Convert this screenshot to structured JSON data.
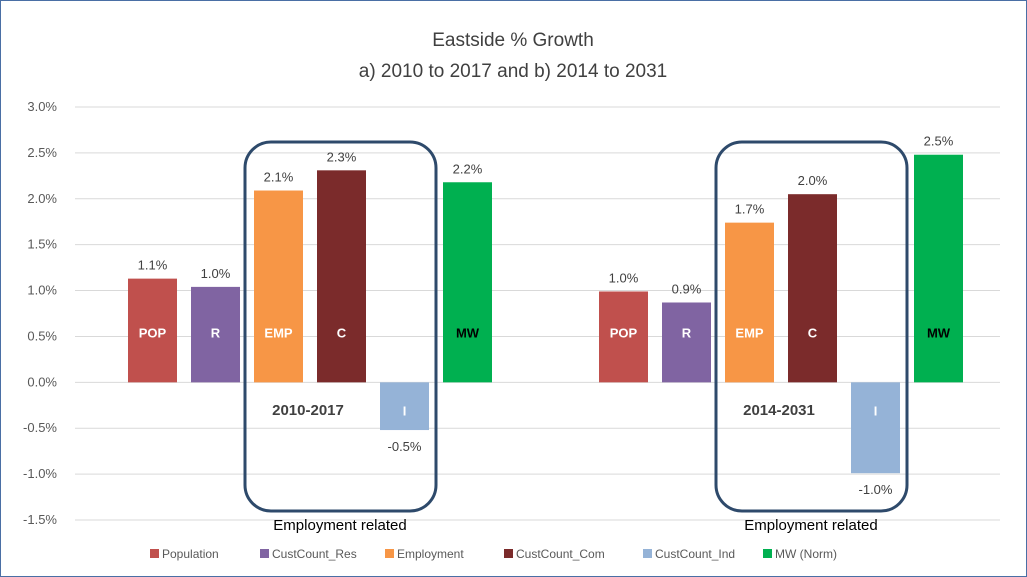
{
  "chart_data": {
    "type": "bar",
    "title": "Eastside % Growth",
    "subtitle": "a) 2010 to 2017 and b) 2014 to 2031",
    "groups": [
      "2010-2017",
      "2014-2031"
    ],
    "ylim": [
      -1.5,
      3.0
    ],
    "yticks": [
      "3.0%",
      "2.5%",
      "2.0%",
      "1.5%",
      "1.0%",
      "0.5%",
      "0.0%",
      "-0.5%",
      "-1.0%",
      "-1.5%"
    ],
    "grid": true,
    "legend_position": "bottom",
    "series": [
      {
        "name": "Population",
        "abbr": "POP",
        "color": "#c0504d",
        "abbr_color": "#ffffff",
        "values": [
          1.13,
          0.99
        ],
        "labels": [
          "1.1%",
          "1.0%"
        ]
      },
      {
        "name": "CustCount_Res",
        "abbr": "R",
        "color": "#8064a2",
        "abbr_color": "#ffffff",
        "values": [
          1.04,
          0.87
        ],
        "labels": [
          "1.0%",
          "0.9%"
        ]
      },
      {
        "name": "Employment",
        "abbr": "EMP",
        "color": "#f79646",
        "abbr_color": "#ffffff",
        "values": [
          2.09,
          1.74
        ],
        "labels": [
          "2.1%",
          "1.7%"
        ]
      },
      {
        "name": "CustCount_Com",
        "abbr": "C",
        "color": "#7b2b2b",
        "abbr_color": "#ffffff",
        "values": [
          2.31,
          2.05
        ],
        "labels": [
          "2.3%",
          "2.0%"
        ]
      },
      {
        "name": "CustCount_Ind",
        "abbr": "I",
        "color": "#95b3d7",
        "abbr_color": "#ffffff",
        "values": [
          -0.52,
          -0.99
        ],
        "labels": [
          "-0.5%",
          "-1.0%"
        ]
      },
      {
        "name": "MW (Norm)",
        "abbr": "MW",
        "color": "#00b050",
        "abbr_color": "#000000",
        "values": [
          2.18,
          2.48
        ],
        "labels": [
          "2.2%",
          "2.5%"
        ]
      }
    ],
    "annotations": [
      "Employment related",
      "Employment related"
    ],
    "highlight_box_color": "#2e4a6b"
  }
}
